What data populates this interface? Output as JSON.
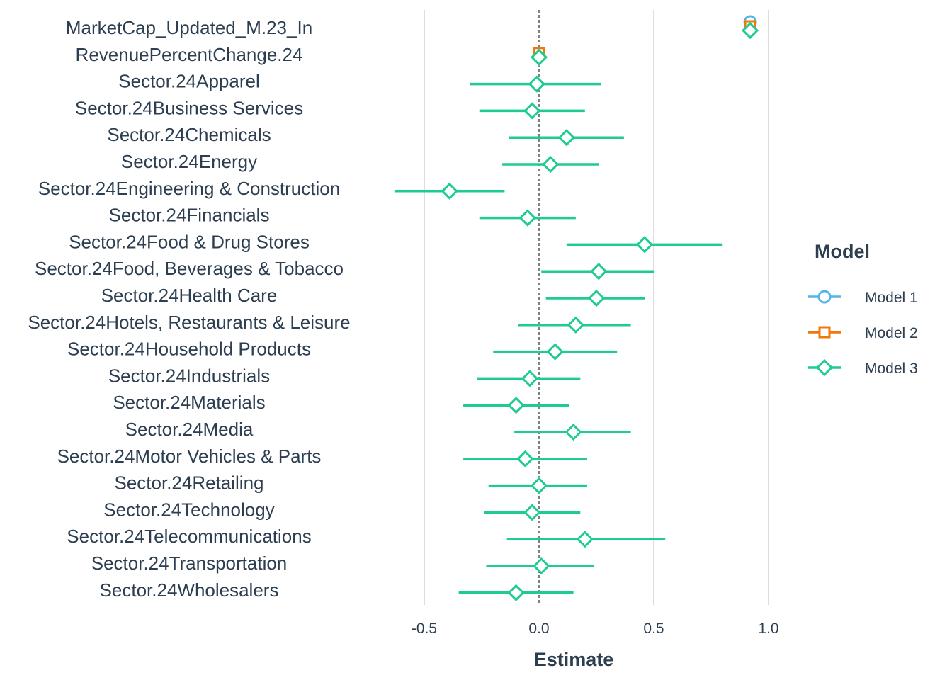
{
  "chart_data": {
    "type": "scatter",
    "subtype": "coefficient-plot",
    "xlabel": "Estimate",
    "ylabel": "",
    "xlim": [
      -0.95,
      1.15
    ],
    "x_ticks": [
      -0.5,
      0.0,
      0.5,
      1.0
    ],
    "x_tick_labels": [
      "-0.5",
      "0.0",
      "0.5",
      "1.0"
    ],
    "reference_line": 0,
    "grid": "vertical major gridlines",
    "legend": {
      "title": "Model",
      "placement": "right",
      "entries": [
        "Model 1",
        "Model 2",
        "Model 3"
      ]
    },
    "terms": [
      "MarketCap_Updated_M.23_In",
      "RevenuePercentChange.24",
      "Sector.24Apparel",
      "Sector.24Business Services",
      "Sector.24Chemicals",
      "Sector.24Energy",
      "Sector.24Engineering & Construction",
      "Sector.24Financials",
      "Sector.24Food & Drug Stores",
      "Sector.24Food, Beverages & Tobacco",
      "Sector.24Health Care",
      "Sector.24Hotels, Restaurants & Leisure",
      "Sector.24Household Products",
      "Sector.24Industrials",
      "Sector.24Materials",
      "Sector.24Media",
      "Sector.24Motor Vehicles & Parts",
      "Sector.24Retailing",
      "Sector.24Technology",
      "Sector.24Telecommunications",
      "Sector.24Transportation",
      "Sector.24Wholesalers"
    ],
    "series": [
      {
        "name": "Model 1",
        "color": "#56B4E9",
        "marker": "circle",
        "points": [
          {
            "term": "MarketCap_Updated_M.23_In",
            "estimate": 0.92,
            "low": 0.91,
            "high": 0.93
          }
        ]
      },
      {
        "name": "Model 2",
        "color": "#F0780A",
        "marker": "square",
        "points": [
          {
            "term": "MarketCap_Updated_M.23_In",
            "estimate": 0.92,
            "low": 0.91,
            "high": 0.93
          },
          {
            "term": "RevenuePercentChange.24",
            "estimate": 0.0,
            "low": -0.01,
            "high": 0.01
          }
        ]
      },
      {
        "name": "Model 3",
        "color": "#1FCC8F",
        "marker": "diamond",
        "points": [
          {
            "term": "MarketCap_Updated_M.23_In",
            "estimate": 0.92,
            "low": 0.91,
            "high": 0.93
          },
          {
            "term": "RevenuePercentChange.24",
            "estimate": 0.0,
            "low": -0.01,
            "high": 0.01
          },
          {
            "term": "Sector.24Apparel",
            "estimate": -0.01,
            "low": -0.3,
            "high": 0.27
          },
          {
            "term": "Sector.24Business Services",
            "estimate": -0.03,
            "low": -0.26,
            "high": 0.2
          },
          {
            "term": "Sector.24Chemicals",
            "estimate": 0.12,
            "low": -0.13,
            "high": 0.37
          },
          {
            "term": "Sector.24Energy",
            "estimate": 0.05,
            "low": -0.16,
            "high": 0.26
          },
          {
            "term": "Sector.24Engineering & Construction",
            "estimate": -0.39,
            "low": -0.63,
            "high": -0.15
          },
          {
            "term": "Sector.24Financials",
            "estimate": -0.05,
            "low": -0.26,
            "high": 0.16
          },
          {
            "term": "Sector.24Food & Drug Stores",
            "estimate": 0.46,
            "low": 0.12,
            "high": 0.8
          },
          {
            "term": "Sector.24Food, Beverages & Tobacco",
            "estimate": 0.26,
            "low": 0.01,
            "high": 0.5
          },
          {
            "term": "Sector.24Health Care",
            "estimate": 0.25,
            "low": 0.03,
            "high": 0.46
          },
          {
            "term": "Sector.24Hotels, Restaurants & Leisure",
            "estimate": 0.16,
            "low": -0.09,
            "high": 0.4
          },
          {
            "term": "Sector.24Household Products",
            "estimate": 0.07,
            "low": -0.2,
            "high": 0.34
          },
          {
            "term": "Sector.24Industrials",
            "estimate": -0.04,
            "low": -0.27,
            "high": 0.18
          },
          {
            "term": "Sector.24Materials",
            "estimate": -0.1,
            "low": -0.33,
            "high": 0.13
          },
          {
            "term": "Sector.24Media",
            "estimate": 0.15,
            "low": -0.11,
            "high": 0.4
          },
          {
            "term": "Sector.24Motor Vehicles & Parts",
            "estimate": -0.06,
            "low": -0.33,
            "high": 0.21
          },
          {
            "term": "Sector.24Retailing",
            "estimate": 0.0,
            "low": -0.22,
            "high": 0.21
          },
          {
            "term": "Sector.24Technology",
            "estimate": -0.03,
            "low": -0.24,
            "high": 0.18
          },
          {
            "term": "Sector.24Telecommunications",
            "estimate": 0.2,
            "low": -0.14,
            "high": 0.55
          },
          {
            "term": "Sector.24Transportation",
            "estimate": 0.01,
            "low": -0.23,
            "high": 0.24
          },
          {
            "term": "Sector.24Wholesalers",
            "estimate": -0.1,
            "low": -0.35,
            "high": 0.15
          }
        ]
      }
    ]
  }
}
